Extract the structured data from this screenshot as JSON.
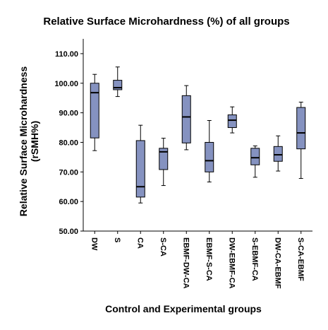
{
  "chart_data": {
    "type": "box",
    "title": "Relative Surface Microhardness (%) of all groups",
    "xlabel": "Control and Experimental groups",
    "ylabel_line1": "Relative Surface Microhardness",
    "ylabel_line2": "(rSMH%)",
    "ylim": [
      50,
      115
    ],
    "yticks": [
      50,
      60,
      70,
      80,
      90,
      100,
      110
    ],
    "ytick_labels": [
      "50.00",
      "60.00",
      "70.00",
      "80.00",
      "90.00",
      "100.00",
      "110.00"
    ],
    "grid": false,
    "box_color": "#8592c0",
    "box_stroke": "#000000",
    "categories": [
      "DW",
      "S",
      "CA",
      "S-CA",
      "EBMF-DW-CA",
      "EBMF-S-CA",
      "DW-EBMF-CA",
      "S-EBMF-CA",
      "DW-CA-EBMF",
      "S-CA-EBMF"
    ],
    "boxes": [
      {
        "min": 77.2,
        "q1": 81.5,
        "median": 96.8,
        "q3": 100.0,
        "max": 103.0
      },
      {
        "min": 95.5,
        "q1": 97.8,
        "median": 98.5,
        "q3": 101.0,
        "max": 105.5
      },
      {
        "min": 59.5,
        "q1": 61.5,
        "median": 65.0,
        "q3": 80.6,
        "max": 85.8
      },
      {
        "min": 65.4,
        "q1": 70.8,
        "median": 76.8,
        "q3": 78.0,
        "max": 81.4
      },
      {
        "min": 77.5,
        "q1": 79.8,
        "median": 88.6,
        "q3": 95.8,
        "max": 99.2
      },
      {
        "min": 66.6,
        "q1": 70.0,
        "median": 73.8,
        "q3": 80.0,
        "max": 87.4
      },
      {
        "min": 83.2,
        "q1": 85.0,
        "median": 87.5,
        "q3": 89.3,
        "max": 92.0
      },
      {
        "min": 68.2,
        "q1": 72.4,
        "median": 74.8,
        "q3": 78.0,
        "max": 78.8
      },
      {
        "min": 70.3,
        "q1": 73.6,
        "median": 75.8,
        "q3": 78.6,
        "max": 82.2
      },
      {
        "min": 67.8,
        "q1": 77.8,
        "median": 83.2,
        "q3": 91.8,
        "max": 93.6
      }
    ]
  }
}
